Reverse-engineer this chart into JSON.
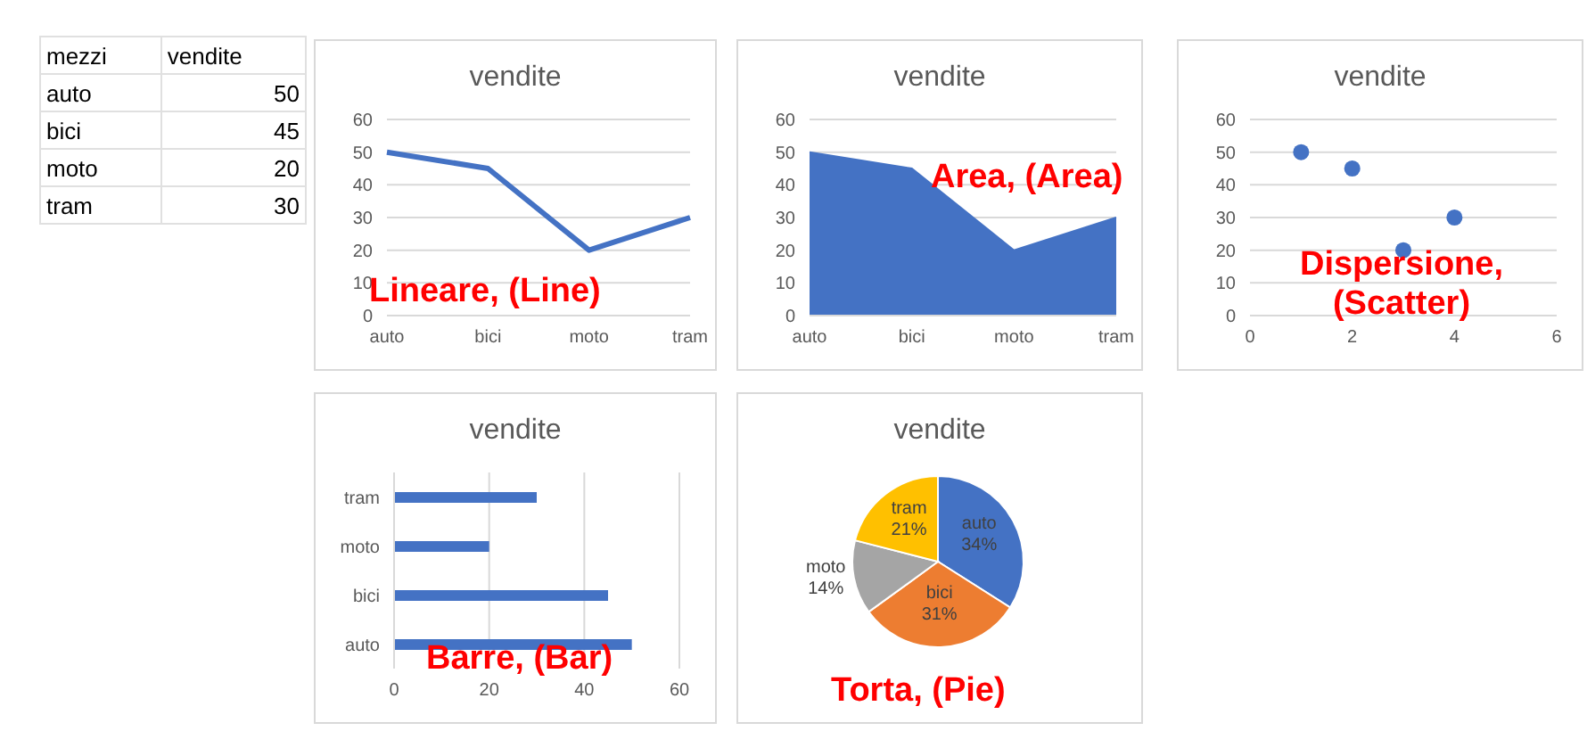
{
  "chart_data": [
    {
      "type": "other",
      "data_labels": true,
      "xlabel": "mezzi",
      "ylabel": "vendite",
      "categories": [
        "auto",
        "bici",
        "moto",
        "tram"
      ],
      "values": [
        50,
        45,
        20,
        30
      ]
    },
    {
      "type": "line",
      "title": "vendite",
      "categories": [
        "auto",
        "bici",
        "moto",
        "tram"
      ],
      "values": [
        50,
        45,
        20,
        30
      ],
      "color": "#4472c4",
      "ylim": [
        0,
        60
      ],
      "yticks": [
        0,
        10,
        20,
        30,
        40,
        50,
        60
      ],
      "grid": "y",
      "annotations": [
        "Lineare, (Line)"
      ]
    },
    {
      "type": "area",
      "title": "vendite",
      "categories": [
        "auto",
        "bici",
        "moto",
        "tram"
      ],
      "values": [
        50,
        45,
        20,
        30
      ],
      "color": "#4472c4",
      "ylim": [
        0,
        60
      ],
      "yticks": [
        0,
        10,
        20,
        30,
        40,
        50,
        60
      ],
      "grid": "y",
      "annotations": [
        "Area, (Area)"
      ]
    },
    {
      "type": "scatter",
      "title": "vendite",
      "x": [
        1,
        2,
        3,
        4
      ],
      "values": [
        50,
        45,
        20,
        30
      ],
      "color": "#4472c4",
      "xlim": [
        0,
        6
      ],
      "xticks": [
        0,
        2,
        4,
        6
      ],
      "ylim": [
        0,
        60
      ],
      "yticks": [
        0,
        10,
        20,
        30,
        40,
        50,
        60
      ],
      "grid": "y",
      "marker": "circle",
      "annotations": [
        "Dispersione, (Scatter)"
      ]
    },
    {
      "type": "bar",
      "orientation": "horizontal",
      "title": "vendite",
      "categories": [
        "tram",
        "moto",
        "bici",
        "auto"
      ],
      "values": [
        30,
        20,
        45,
        50
      ],
      "color": "#4472c4",
      "xlim": [
        0,
        60
      ],
      "xticks": [
        0,
        20,
        40,
        60
      ],
      "grid": "x",
      "annotations": [
        "Barre, (Bar)"
      ]
    },
    {
      "type": "pie",
      "title": "vendite",
      "categories": [
        "auto",
        "bici",
        "moto",
        "tram"
      ],
      "values": [
        34,
        31,
        14,
        21
      ],
      "value_labels": [
        "34%",
        "31%",
        "14%",
        "21%"
      ],
      "colors": [
        "#4472c4",
        "#ed7d31",
        "#a5a5a5",
        "#ffc000"
      ],
      "annotations": [
        "Torta, (Pie)"
      ]
    }
  ]
}
